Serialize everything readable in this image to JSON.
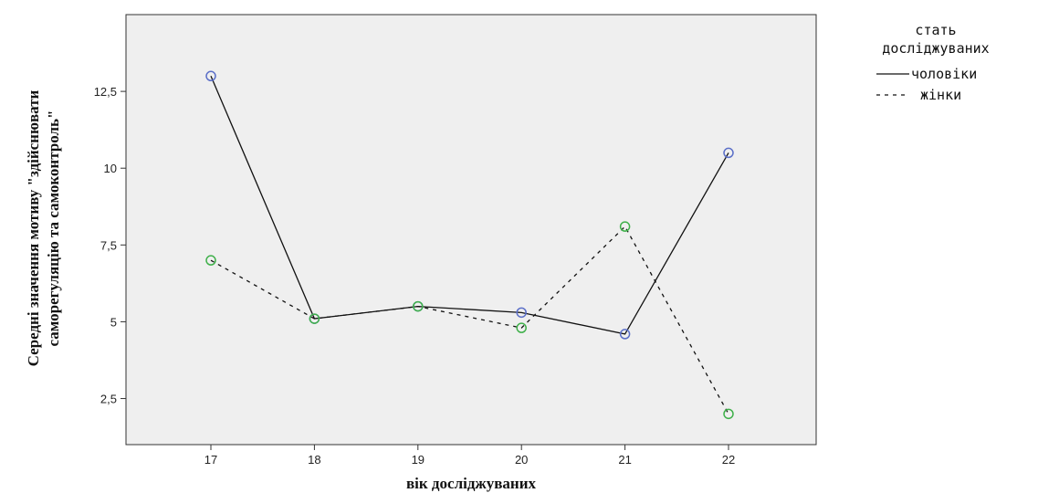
{
  "chart_data": {
    "type": "line",
    "title": "",
    "xlabel": "вік досліджуваних",
    "ylabel_lines": [
      "Середні значення мотиву \"здійснювати",
      "саморегуляцію та самоконтроль\""
    ],
    "categories": [
      "17",
      "18",
      "19",
      "20",
      "21",
      "22"
    ],
    "y_ticks": [
      2.5,
      5,
      7.5,
      10,
      12.5
    ],
    "y_tick_labels": [
      "2,5",
      "5",
      "7,5",
      "10",
      "12,5"
    ],
    "ylim": [
      1.0,
      15.0
    ],
    "grid": false,
    "legend": {
      "title_lines": [
        "стать",
        "досліджуваних"
      ],
      "position": "right"
    },
    "series": [
      {
        "name": "чоловіки",
        "values": [
          13.0,
          5.1,
          5.5,
          5.3,
          4.6,
          10.5
        ],
        "line_style": "solid",
        "marker_color": "#5b6fc8"
      },
      {
        "name": "жінки",
        "values": [
          7.0,
          5.1,
          5.5,
          4.8,
          8.1,
          2.0
        ],
        "line_style": "dashed",
        "marker_color": "#3fb04a"
      }
    ]
  },
  "colors": {
    "plot_background": "#efefef",
    "line": "#111111"
  }
}
